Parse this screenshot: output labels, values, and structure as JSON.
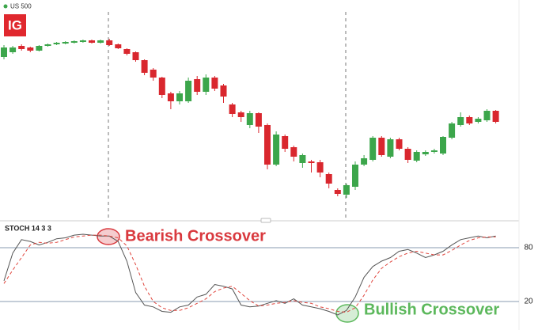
{
  "chart_data": [
    {
      "type": "candlestick",
      "title": "US 500",
      "logo": "IG",
      "up_color": "#3ca64b",
      "down_color": "#d9272e",
      "open": [
        208,
        214,
        222,
        220,
        216,
        222,
        224,
        225,
        226,
        227,
        229,
        226,
        229,
        224,
        218,
        214,
        204,
        192,
        182,
        162,
        152,
        152,
        180,
        164,
        182,
        172,
        148,
        138,
        122,
        137,
        122,
        72,
        108,
        94,
        74,
        76,
        75,
        60,
        40,
        34,
        44,
        72,
        78,
        106,
        82,
        104,
        92,
        77,
        85,
        88,
        86,
        106,
        122,
        132,
        126,
        128,
        140
      ],
      "high": [
        223,
        222,
        224,
        221,
        223,
        225,
        227,
        228,
        229,
        230,
        230,
        230,
        231,
        225,
        219,
        215,
        205,
        194,
        183,
        164,
        165,
        182,
        184,
        186,
        184,
        174,
        150,
        140,
        140,
        138,
        124,
        114,
        110,
        96,
        86,
        78,
        78,
        62,
        42,
        48,
        76,
        84,
        108,
        108,
        106,
        106,
        94,
        90,
        90,
        92,
        108,
        126,
        138,
        134,
        132,
        142,
        141
      ],
      "low": [
        205,
        212,
        216,
        214,
        215,
        221,
        223,
        224,
        225,
        226,
        225,
        225,
        222,
        218,
        210,
        202,
        185,
        178,
        156,
        142,
        148,
        150,
        160,
        160,
        165,
        150,
        132,
        126,
        118,
        112,
        66,
        70,
        88,
        76,
        68,
        62,
        56,
        42,
        32,
        30,
        40,
        70,
        76,
        82,
        80,
        90,
        74,
        75,
        83,
        86,
        84,
        104,
        120,
        122,
        124,
        126,
        124
      ],
      "close": [
        220,
        220,
        218,
        216,
        222,
        224,
        226,
        227,
        228,
        229,
        226,
        229,
        223,
        219,
        212,
        204,
        188,
        182,
        160,
        152,
        162,
        178,
        164,
        182,
        168,
        158,
        136,
        132,
        137,
        120,
        72,
        110,
        92,
        82,
        84,
        74,
        62,
        48,
        35,
        46,
        72,
        80,
        106,
        84,
        104,
        92,
        78,
        88,
        88,
        90,
        107,
        124,
        132,
        124,
        130,
        140,
        126
      ],
      "ylim": [
        0,
        280
      ]
    },
    {
      "type": "line",
      "title": "STOCH 14 3 3",
      "ylim": [
        -10,
        110
      ],
      "yticks": [
        20,
        80
      ],
      "grid": true,
      "grid_color": "#8a9bb0",
      "series": [
        {
          "color": "#555555",
          "dash": false,
          "values": [
            43,
            74,
            89,
            87,
            83,
            86,
            90,
            91,
            94,
            95,
            94,
            93,
            93,
            87,
            65,
            30,
            16,
            14,
            9,
            8,
            14,
            16,
            25,
            28,
            39,
            37,
            34,
            16,
            14,
            15,
            18,
            21,
            18,
            23,
            16,
            14,
            12,
            9,
            5,
            10,
            25,
            47,
            59,
            65,
            69,
            76,
            78,
            74,
            69,
            72,
            76,
            83,
            89,
            91,
            93,
            91,
            93
          ]
        },
        {
          "color": "#e0453d",
          "dash": true,
          "values": [
            40,
            55,
            69,
            83,
            86,
            85,
            86,
            89,
            92,
            93,
            94,
            94,
            93,
            91,
            82,
            61,
            37,
            20,
            13,
            10,
            10,
            13,
            18,
            23,
            31,
            35,
            37,
            29,
            21,
            15,
            16,
            18,
            19,
            21,
            19,
            18,
            14,
            12,
            9,
            8,
            13,
            27,
            44,
            57,
            64,
            70,
            74,
            76,
            74,
            72,
            72,
            77,
            83,
            88,
            91,
            92,
            92
          ]
        }
      ],
      "annotations": [
        {
          "text": "Bearish Crossover",
          "color": "#d9393e"
        },
        {
          "text": "Bullish Crossover",
          "color": "#5cb85c"
        }
      ]
    }
  ]
}
